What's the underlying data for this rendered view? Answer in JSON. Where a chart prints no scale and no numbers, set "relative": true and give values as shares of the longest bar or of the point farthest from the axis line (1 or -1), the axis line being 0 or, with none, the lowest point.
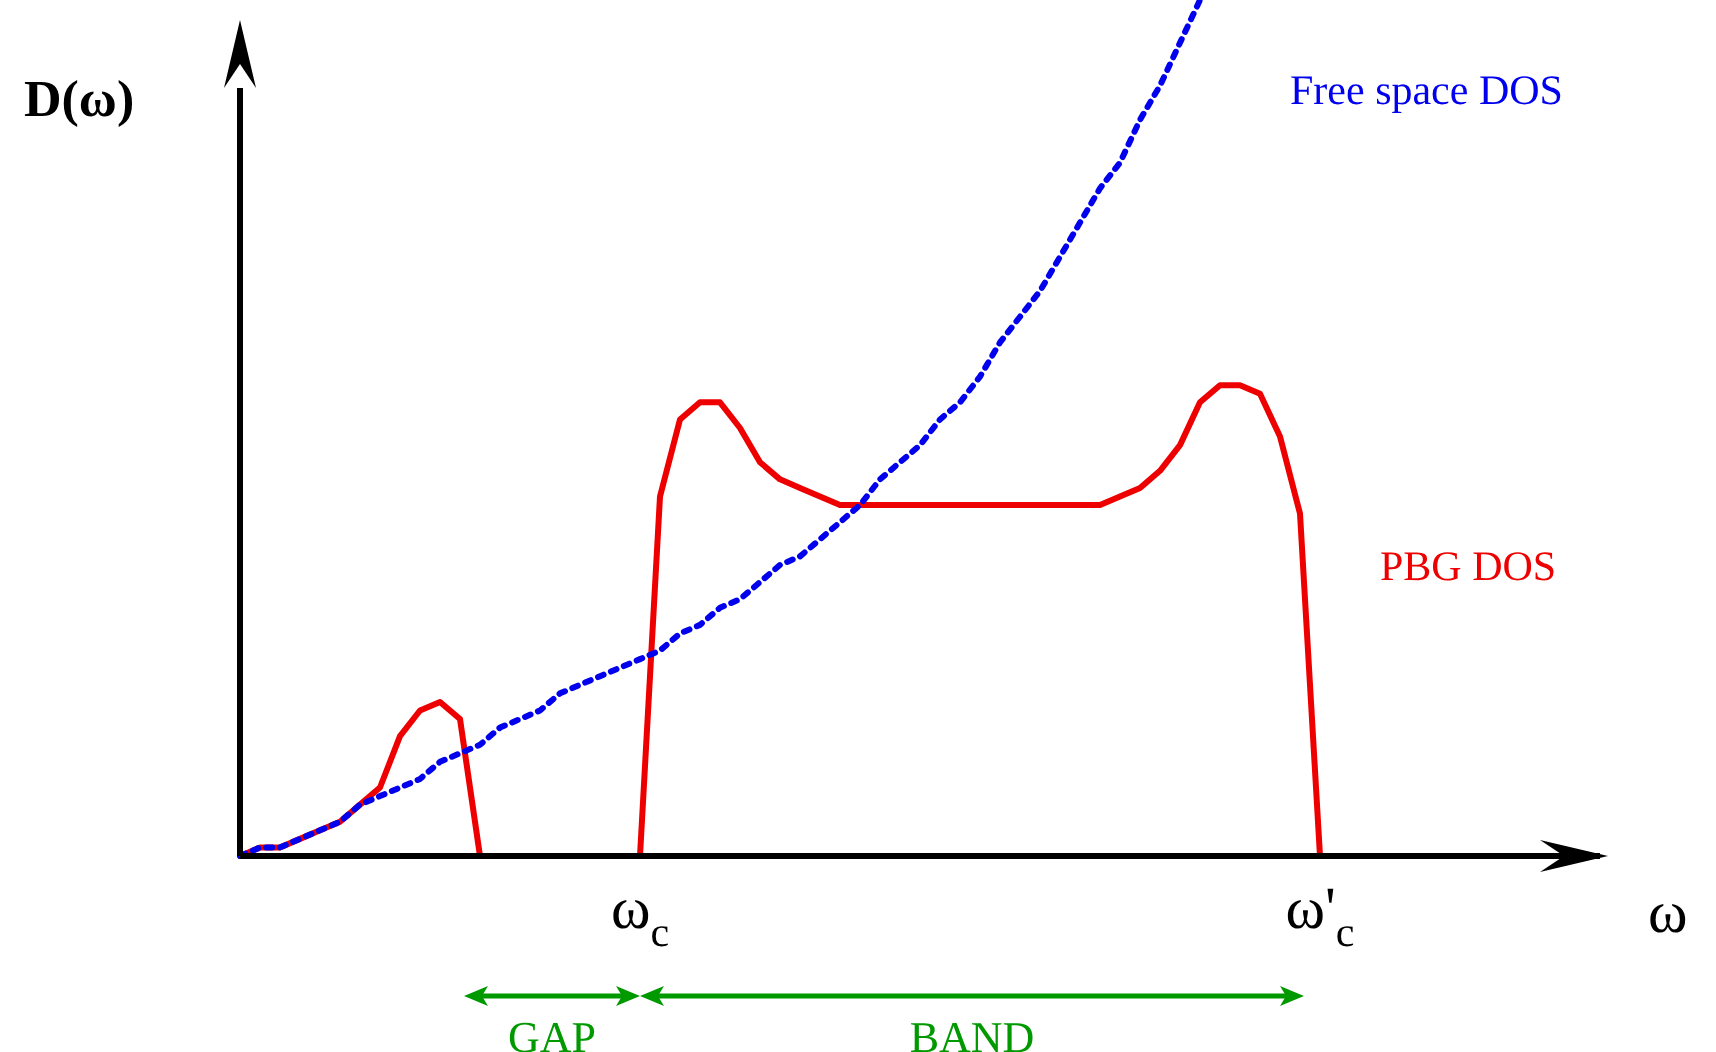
{
  "chart_data": {
    "type": "line",
    "relative": true,
    "ylabel": "D(ω)",
    "xlabel": "ω",
    "categories": [
      null,
      null,
      null,
      null,
      null,
      null,
      null,
      null,
      null,
      null,
      null,
      null,
      null,
      null,
      null,
      null,
      null,
      null,
      null,
      null,
      "ω$_{c}$",
      null,
      null,
      null,
      null,
      null,
      null,
      null,
      null,
      null,
      null,
      null,
      null,
      null,
      null,
      null,
      null,
      null,
      null,
      null,
      null,
      null,
      null,
      null,
      null,
      null,
      null,
      null,
      null,
      null,
      null,
      null,
      null,
      null,
      "ω'$_{c}$",
      null,
      null,
      null,
      null,
      null,
      null,
      null,
      null,
      null,
      null,
      null,
      null,
      null,
      null
    ],
    "legend": false,
    "line_style": "solid",
    "marker": "none",
    "annotations": [
      "GAP",
      "BAND"
    ],
    "series": [
      {
        "name": "Free space DOS",
        "color": "#0000ee",
        "line_style": "dotted",
        "values": [
          0,
          0.01,
          0.01,
          0.02,
          0.03,
          0.04,
          0.06,
          0.07,
          0.08,
          0.09,
          0.11,
          0.12,
          0.13,
          0.15,
          0.16,
          0.17,
          0.19,
          0.2,
          0.21,
          0.22,
          0.23,
          0.24,
          0.26,
          0.27,
          0.29,
          0.3,
          0.32,
          0.34,
          0.35,
          0.37,
          0.39,
          0.41,
          0.44,
          0.46,
          0.48,
          0.51,
          0.53,
          0.56,
          0.6,
          0.63,
          0.66,
          0.7,
          0.74,
          0.78,
          0.81,
          0.86,
          0.9,
          0.95,
          1,
          null,
          null,
          null,
          null,
          null,
          null,
          null,
          null,
          null,
          null,
          null,
          null,
          null,
          null,
          null,
          null,
          null,
          null,
          null,
          null
        ]
      },
      {
        "name": "PBG DOS",
        "color": "#ee0000",
        "values": [
          0,
          0.01,
          0.01,
          0.02,
          0.03,
          0.04,
          0.06,
          0.08,
          0.14,
          0.17,
          0.18,
          0.16,
          0,
          null,
          null,
          null,
          null,
          null,
          null,
          null,
          0,
          0.42,
          0.51,
          0.53,
          0.53,
          0.5,
          0.46,
          0.44,
          0.43,
          0.42,
          0.41,
          0.41,
          0.41,
          0.41,
          0.41,
          0.41,
          0.41,
          0.41,
          0.41,
          0.41,
          0.41,
          0.41,
          0.41,
          0.41,
          0.42,
          0.43,
          0.45,
          0.48,
          0.53,
          0.55,
          0.55,
          0.54,
          0.49,
          0.4,
          0,
          0,
          0,
          null,
          null,
          null,
          null,
          null,
          null,
          null,
          null,
          null,
          null,
          null,
          null
        ]
      }
    ]
  }
}
